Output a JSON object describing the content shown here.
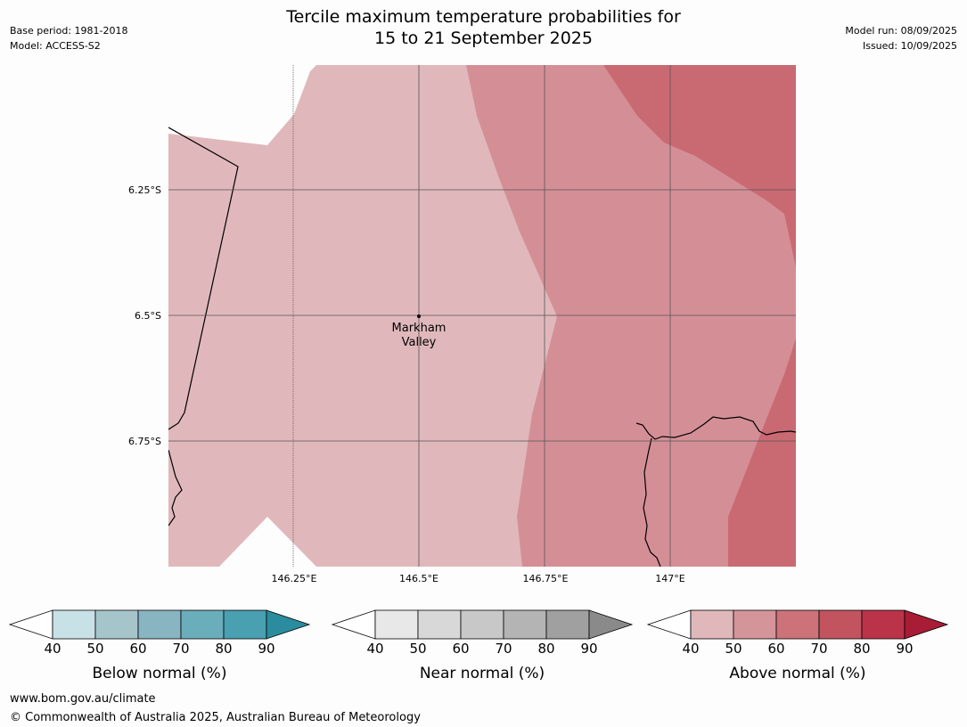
{
  "header": {
    "title_line1": "Tercile maximum temperature probabilities for",
    "title_line2": "15 to 21 September 2025",
    "base_period": "Base period: 1981-2018",
    "model": "Model: ACCESS-S2",
    "model_run": "Model run: 08/09/2025",
    "issued": "Issued: 10/09/2025"
  },
  "map": {
    "lat_labels": [
      "6.25°S",
      "6.5°S",
      "6.75°S"
    ],
    "lon_labels": [
      "146.25°E",
      "146.5°E",
      "146.75°E",
      "147°E"
    ],
    "place": {
      "name_line1": "Markham",
      "name_line2": "Valley"
    },
    "fill_colors": {
      "above_40": "#e0b8bb",
      "above_50": "#d48f96",
      "above_60": "#c96a73"
    }
  },
  "colorbars": [
    {
      "name": "below",
      "label": "Below normal (%)",
      "ticks": [
        "40",
        "50",
        "60",
        "70",
        "80",
        "90"
      ],
      "colors": [
        "#c8e1e6",
        "#a6c5cb",
        "#88b5c1",
        "#6aadbb",
        "#48a0b0",
        "#2a8c9e"
      ]
    },
    {
      "name": "near",
      "label": "Near normal (%)",
      "ticks": [
        "40",
        "50",
        "60",
        "70",
        "80",
        "90"
      ],
      "colors": [
        "#e8e8e8",
        "#d8d8d8",
        "#c8c8c8",
        "#b4b4b4",
        "#a0a0a0",
        "#8a8a8a"
      ]
    },
    {
      "name": "above",
      "label": "Above normal (%)",
      "ticks": [
        "40",
        "50",
        "60",
        "70",
        "80",
        "90"
      ],
      "colors": [
        "#e0b8bb",
        "#d4959a",
        "#cc7278",
        "#c25460",
        "#bb3349",
        "#a81c36"
      ]
    }
  ],
  "footer": {
    "url": "www.bom.gov.au/climate",
    "copyright": "© Commonwealth of Australia 2025, Australian Bureau of Meteorology"
  }
}
